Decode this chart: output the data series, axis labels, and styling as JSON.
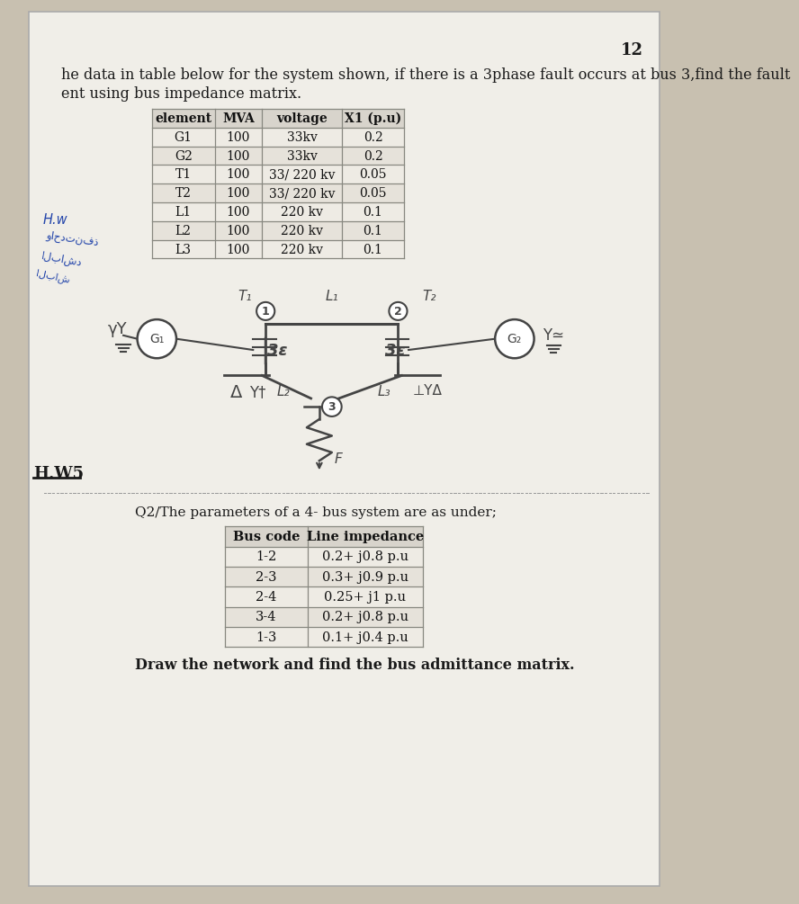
{
  "page_number": "12",
  "bg_color": "#c8c0b0",
  "paper_color": "#f0eee8",
  "title_line1": "he data in table below for the system shown, if there is a 3phase fault occurs at bus 3,find the fault",
  "title_line2": "ent using bus impedance matrix.",
  "table1_headers": [
    "element",
    "MVA",
    "voltage",
    "X1 (p.u)"
  ],
  "table1_rows": [
    [
      "G1",
      "100",
      "33kv",
      "0.2"
    ],
    [
      "G2",
      "100",
      "33kv",
      "0.2"
    ],
    [
      "T1",
      "100",
      "33/ 220 kv",
      "0.05"
    ],
    [
      "T2",
      "100",
      "33/ 220 kv",
      "0.05"
    ],
    [
      "L1",
      "100",
      "220 kv",
      "0.1"
    ],
    [
      "L2",
      "100",
      "220 kv",
      "0.1"
    ],
    [
      "L3",
      "100",
      "220 kv",
      "0.1"
    ]
  ],
  "hw_label": "H.W5",
  "q2_title": "Q2/The parameters of a 4- bus system are as under;",
  "table2_headers": [
    "Bus code",
    "Line impedance"
  ],
  "table2_rows": [
    [
      "1-2",
      "0.2+ j0.8 p.u"
    ],
    [
      "2-3",
      "0.3+ j0.9 p.u"
    ],
    [
      "2-4",
      "0.25+ j1 p.u"
    ],
    [
      "3-4",
      "0.2+ j0.8 p.u"
    ],
    [
      "1-3",
      "0.1+ j0.4 p.u"
    ]
  ],
  "q2_footer": "Draw the network and find the bus admittance matrix.",
  "text_color": "#1a1a1a",
  "table_header_color": "#d8d4cc",
  "table_row_color1": "#eeebe4",
  "table_row_color2": "#e6e2da",
  "table_border_color": "#888880",
  "blue_ink": "#2244aa",
  "pencil_color": "#444444"
}
